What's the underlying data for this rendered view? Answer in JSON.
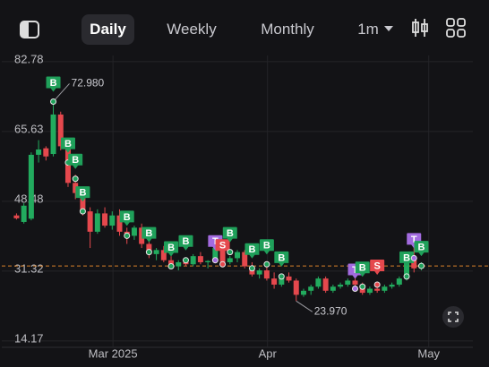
{
  "toolbar": {
    "tabs": [
      "Daily",
      "Weekly",
      "Monthly"
    ],
    "interval": "1m"
  },
  "chart_data": {
    "type": "candlestick",
    "up_color": "#22ab5e",
    "down_color": "#e5484d",
    "x": [
      0,
      1,
      2,
      3,
      4,
      5,
      6,
      7,
      8,
      9,
      10,
      11,
      12,
      13,
      14,
      15,
      16,
      17,
      18,
      19,
      20,
      21,
      22,
      23,
      24,
      25,
      26,
      27,
      28,
      29,
      30,
      31,
      32,
      33,
      34,
      35,
      36,
      37,
      38,
      39,
      40,
      41,
      42,
      43,
      44,
      45,
      46,
      47,
      48,
      49,
      50,
      51,
      52,
      53,
      54,
      55
    ],
    "open": [
      45,
      43.4,
      44.2,
      59.9,
      61.5,
      60.1,
      69.8,
      62,
      53,
      50.5,
      46,
      41,
      45.5,
      42.5,
      45,
      41,
      40,
      42,
      38,
      35.5,
      36.5,
      34,
      32.5,
      33.5,
      33,
      35,
      33.5,
      33.8,
      37,
      33.5,
      34.5,
      36,
      32.5,
      30.5,
      31.5,
      29.5,
      28,
      30,
      29,
      25.5,
      26.5,
      27.5,
      29.5,
      26.5,
      27.5,
      28,
      29,
      28,
      26,
      27,
      26.5,
      27.5,
      28,
      29.5,
      34,
      32
    ],
    "high": [
      45.5,
      48,
      60.5,
      63.5,
      62,
      72.98,
      70.5,
      63,
      55,
      52,
      47,
      46.5,
      47,
      46,
      46.5,
      42,
      42.5,
      43,
      39,
      37,
      37.5,
      35,
      34,
      34.5,
      35.5,
      36,
      34,
      38,
      38.5,
      35,
      36.5,
      36.5,
      33.5,
      32,
      33,
      31,
      30.5,
      31,
      29.5,
      27,
      28,
      30,
      30,
      28,
      28.5,
      29.5,
      29.5,
      28.5,
      27.5,
      28,
      28,
      28.5,
      30,
      34.5,
      37.5,
      33.5
    ],
    "low": [
      44,
      43,
      43.8,
      58,
      58.5,
      59.5,
      61,
      52,
      49,
      45,
      37,
      40.5,
      42,
      41.5,
      40,
      38,
      39,
      37,
      34.5,
      34,
      33.5,
      32,
      31.5,
      32.5,
      32.5,
      33,
      32,
      33.5,
      33,
      33,
      33.5,
      32,
      30,
      29.5,
      29,
      27,
      27.5,
      28.5,
      23.97,
      25,
      25.5,
      27,
      26,
      26,
      27,
      27.5,
      27.5,
      25.5,
      25.5,
      26,
      26,
      27,
      27.5,
      29,
      31,
      31.5
    ],
    "close": [
      44.3,
      47.4,
      59.9,
      61.2,
      59.5,
      69.8,
      62,
      53,
      50.5,
      46,
      41,
      45.5,
      42.5,
      45,
      41,
      40,
      42,
      38,
      35.5,
      36.5,
      34,
      32.5,
      33.5,
      33,
      35,
      33.5,
      33.8,
      37,
      33.5,
      34.5,
      36,
      32.5,
      30.5,
      31.5,
      29.5,
      28,
      30,
      29,
      25.5,
      26.5,
      27.5,
      29.5,
      26.5,
      27.5,
      28,
      29,
      28,
      26,
      27,
      26.5,
      27.5,
      28,
      29.5,
      34,
      32,
      32.6
    ],
    "xlim": [
      -2,
      62
    ],
    "ylim": [
      12.6,
      84.3
    ],
    "xticks": [
      {
        "value": 13.1,
        "label": "Mar 2025"
      },
      {
        "value": 34.1,
        "label": "Apr"
      },
      {
        "value": 56,
        "label": "May"
      }
    ],
    "yticks": [
      82.78,
      65.63,
      48.48,
      31.32,
      14.17
    ],
    "grid": true,
    "price_line": 32.6,
    "price_line_color": "#d9822b",
    "annotations": [
      {
        "text": "72.980",
        "x": 5,
        "value": 72.98
      },
      {
        "text": "23.970",
        "x": 38,
        "value": 23.97
      }
    ],
    "marker_colors": {
      "B": "#1fa05a",
      "S": "#e5484d",
      "T": "#a36be0"
    },
    "markers": [
      {
        "label": "B",
        "x": 5,
        "value": 72.98
      },
      {
        "label": "B",
        "x": 7,
        "value": 58
      },
      {
        "label": "B",
        "x": 8,
        "value": 54
      },
      {
        "label": "B",
        "x": 9,
        "value": 46
      },
      {
        "label": "B",
        "x": 15,
        "value": 40
      },
      {
        "label": "B",
        "x": 18,
        "value": 36
      },
      {
        "label": "B",
        "x": 21,
        "value": 32.5
      },
      {
        "label": "B",
        "x": 23,
        "value": 34
      },
      {
        "label": "T",
        "x": 27,
        "value": 34
      },
      {
        "label": "S",
        "x": 28,
        "value": 33
      },
      {
        "label": "B",
        "x": 29,
        "value": 36
      },
      {
        "label": "B",
        "x": 32,
        "value": 32
      },
      {
        "label": "B",
        "x": 34,
        "value": 33
      },
      {
        "label": "B",
        "x": 36,
        "value": 30
      },
      {
        "label": "T",
        "x": 46,
        "value": 27
      },
      {
        "label": "B",
        "x": 47,
        "value": 27.5
      },
      {
        "label": "S",
        "x": 49,
        "value": 28
      },
      {
        "label": "B",
        "x": 53,
        "value": 30
      },
      {
        "label": "T",
        "x": 54,
        "value": 34.5
      },
      {
        "label": "B",
        "x": 55,
        "value": 32.6
      }
    ]
  }
}
